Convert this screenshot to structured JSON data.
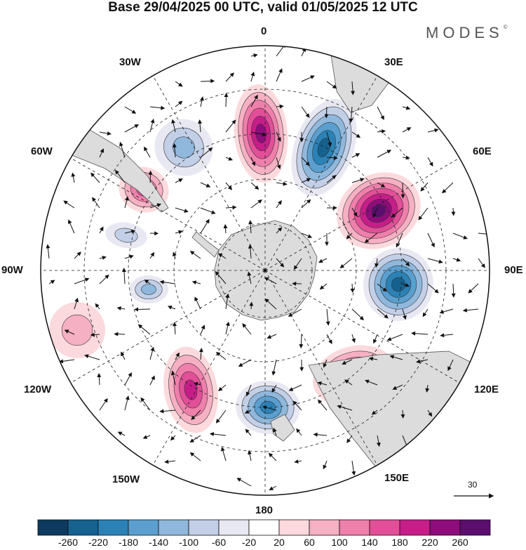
{
  "title": "Base 29/04/2025 00 UTC, valid 01/05/2025 12 UTC",
  "brand": {
    "name": "MODES",
    "mark": "©"
  },
  "longitude_labels": {
    "lon_0": "0",
    "lon_30e": "30E",
    "lon_60e": "60E",
    "lon_90e": "90E",
    "lon_120e": "120E",
    "lon_150e": "150E",
    "lon_180": "180",
    "lon_150w": "150W",
    "lon_120w": "120W",
    "lon_90w": "90W",
    "lon_60w": "60W",
    "lon_30w": "30W"
  },
  "projection": "south-polar-stereographic",
  "grid": true,
  "vector_scale": {
    "value": "30"
  },
  "colorbar": {
    "colors": [
      "#0d3a5e",
      "#15618f",
      "#2b82b7",
      "#5a9fcf",
      "#8fb8dc",
      "#c2cfe7",
      "#e8e8f3",
      "#ffffff",
      "#fbd9dc",
      "#f6b0c3",
      "#ef7fab",
      "#e24f98",
      "#c61d89",
      "#8e0c7b",
      "#5b0e6e"
    ],
    "tick_labels": [
      "-260",
      "-220",
      "-180",
      "-140",
      "-100",
      "-60",
      "-20",
      "20",
      "60",
      "100",
      "140",
      "180",
      "220",
      "260"
    ]
  },
  "anomaly_centers": [
    {
      "sign": "positive",
      "peak": 220
    },
    {
      "sign": "negative",
      "peak": -220
    },
    {
      "sign": "positive",
      "peak": 260
    },
    {
      "sign": "negative",
      "peak": -220
    },
    {
      "sign": "positive",
      "peak": 180
    },
    {
      "sign": "negative",
      "peak": -180
    },
    {
      "sign": "positive",
      "peak": 180
    },
    {
      "sign": "negative",
      "peak": -100
    },
    {
      "sign": "positive",
      "peak": 140
    },
    {
      "sign": "negative",
      "peak": -100
    },
    {
      "sign": "negative",
      "peak": -60
    },
    {
      "sign": "positive",
      "peak": 60
    }
  ]
}
